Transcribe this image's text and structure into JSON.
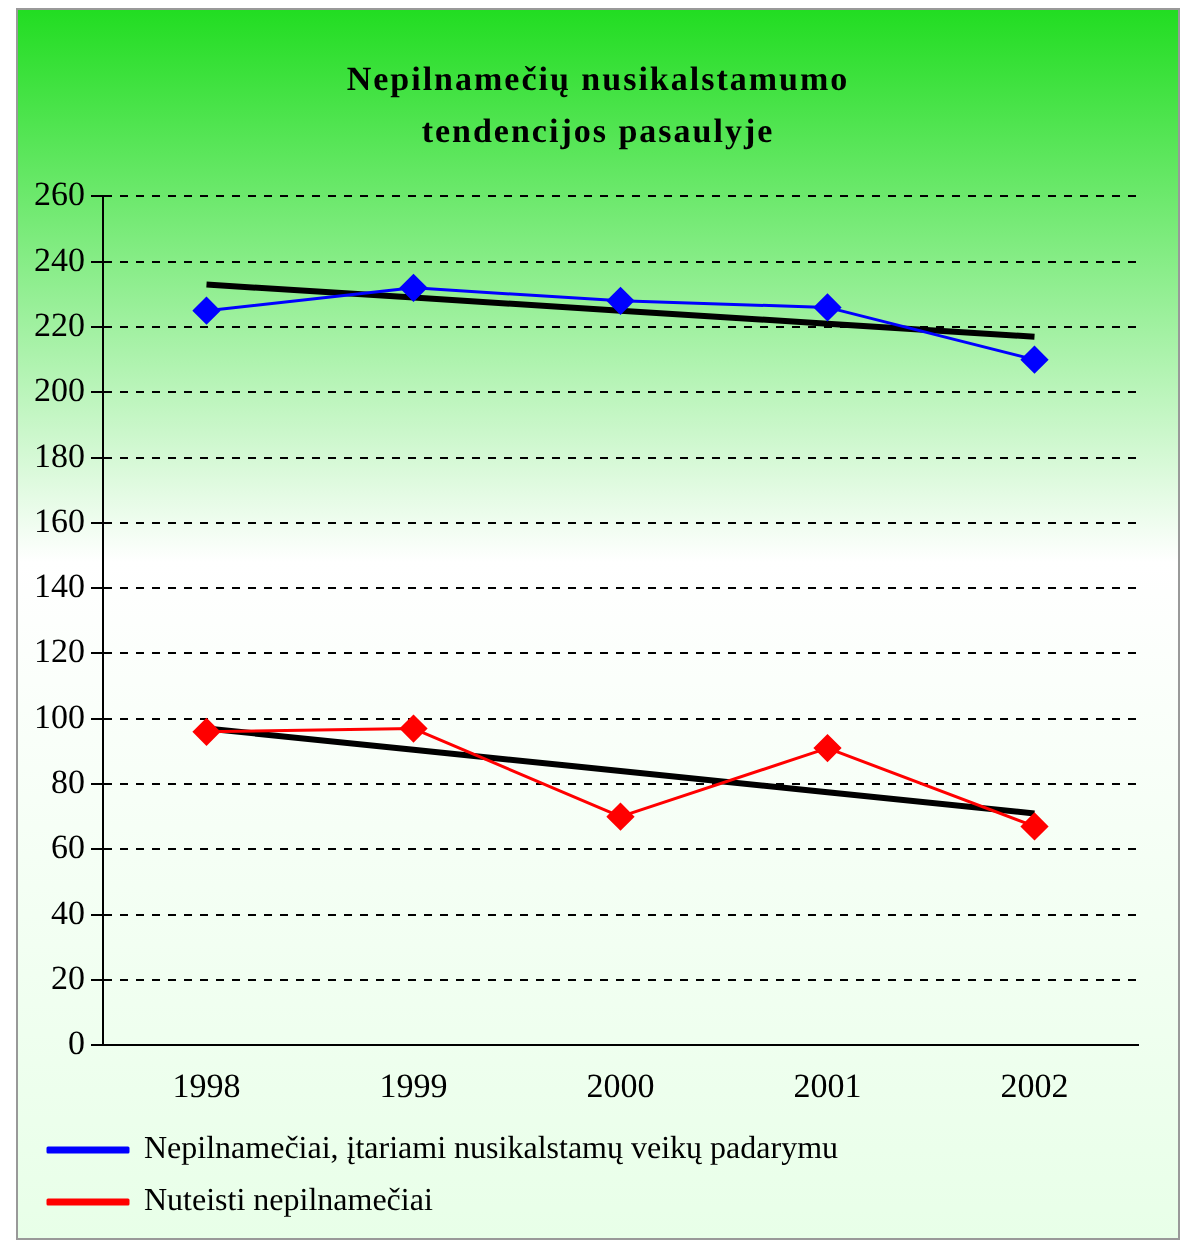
{
  "chart_data": {
    "type": "line",
    "title": "Nepilnamečių nusikalstamumo tendencijos pasaulyje",
    "categories": [
      "1998",
      "1999",
      "2000",
      "2001",
      "2002"
    ],
    "series": [
      {
        "name": "Nepilnamečiai, įtariami nusikalstamų veikų padarymu",
        "color": "#0000ff",
        "values": [
          225,
          232,
          228,
          226,
          210
        ],
        "marker": "diamond"
      },
      {
        "name": "Nuteisti nepilnamečiai",
        "color": "#ff0000",
        "values": [
          96,
          97,
          70,
          91,
          67
        ],
        "marker": "diamond"
      },
      {
        "type": "line",
        "color": "#000000",
        "values": [
          233,
          229,
          225,
          221,
          217
        ],
        "marker": "none"
      },
      {
        "type": "line",
        "color": "#000000",
        "values": [
          97,
          90.5,
          84,
          77.5,
          71
        ],
        "marker": "none"
      }
    ],
    "ylim": [
      0,
      260
    ],
    "yticks": [
      0,
      20,
      40,
      60,
      80,
      100,
      120,
      140,
      160,
      180,
      200,
      220,
      240,
      260
    ],
    "grid": "y",
    "legend": "bottom"
  }
}
